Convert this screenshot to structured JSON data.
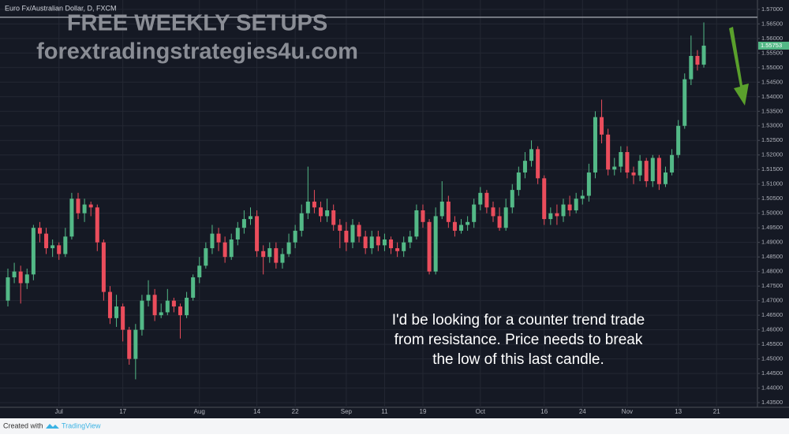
{
  "chart_data": {
    "type": "candlestick",
    "title": "Euro Fx/Australian Dollar, D, FXCM",
    "watermark": [
      "FREE WEEKLY SETUPS",
      "forextradingstrategies4u.com"
    ],
    "annotation": [
      "I'd be looking for a counter trend trade",
      "from resistance.  Price needs to break",
      "the low of this last candle."
    ],
    "up_color": "#53b987",
    "down_color": "#eb4d5c",
    "grid": true,
    "resistance_level": 1.5673,
    "ylim": [
      1.4334,
      1.5732
    ],
    "yticks": [
      {
        "value": 1.435,
        "label": "1.43500"
      },
      {
        "value": 1.44,
        "label": "1.44000"
      },
      {
        "value": 1.445,
        "label": "1.44500"
      },
      {
        "value": 1.45,
        "label": "1.45000"
      },
      {
        "value": 1.455,
        "label": "1.45500"
      },
      {
        "value": 1.46,
        "label": "1.46000"
      },
      {
        "value": 1.465,
        "label": "1.46500"
      },
      {
        "value": 1.47,
        "label": "1.47000"
      },
      {
        "value": 1.475,
        "label": "1.47500"
      },
      {
        "value": 1.48,
        "label": "1.48000"
      },
      {
        "value": 1.485,
        "label": "1.48500"
      },
      {
        "value": 1.49,
        "label": "1.49000"
      },
      {
        "value": 1.495,
        "label": "1.49500"
      },
      {
        "value": 1.5,
        "label": "1.50000"
      },
      {
        "value": 1.505,
        "label": "1.50500"
      },
      {
        "value": 1.51,
        "label": "1.51000"
      },
      {
        "value": 1.515,
        "label": "1.51500"
      },
      {
        "value": 1.52,
        "label": "1.52000"
      },
      {
        "value": 1.525,
        "label": "1.52500"
      },
      {
        "value": 1.53,
        "label": "1.53000"
      },
      {
        "value": 1.535,
        "label": "1.53500"
      },
      {
        "value": 1.54,
        "label": "1.54000"
      },
      {
        "value": 1.545,
        "label": "1.54500"
      },
      {
        "value": 1.55,
        "label": "1.55000"
      },
      {
        "value": 1.555,
        "label": "1.55500"
      },
      {
        "value": 1.56,
        "label": "1.56000"
      },
      {
        "value": 1.565,
        "label": "1.56500"
      },
      {
        "value": 1.57,
        "label": "1.57000"
      }
    ],
    "categories": [
      null,
      null,
      null,
      null,
      null,
      null,
      null,
      null,
      "Jul",
      null,
      null,
      null,
      null,
      null,
      null,
      null,
      null,
      null,
      "17",
      null,
      null,
      null,
      null,
      null,
      null,
      null,
      null,
      null,
      null,
      null,
      "Aug",
      null,
      null,
      null,
      null,
      null,
      null,
      null,
      null,
      "14",
      null,
      null,
      null,
      null,
      null,
      "22",
      null,
      null,
      null,
      null,
      null,
      null,
      null,
      "Sep",
      null,
      null,
      null,
      null,
      null,
      "11",
      null,
      null,
      null,
      null,
      null,
      "19",
      null,
      null,
      null,
      null,
      null,
      null,
      null,
      null,
      "Oct",
      null,
      null,
      null,
      null,
      null,
      null,
      null,
      null,
      null,
      "16",
      null,
      null,
      null,
      null,
      null,
      "24",
      null,
      null,
      null,
      null,
      null,
      null,
      "Nov",
      null,
      null,
      null,
      null,
      null,
      null,
      null,
      "13",
      null,
      null,
      null,
      null,
      null,
      "21",
      null,
      null,
      null,
      null,
      null,
      null
    ],
    "open": [
      1.47,
      1.478,
      1.48,
      1.476,
      1.479,
      1.495,
      1.493,
      1.488,
      1.489,
      1.486,
      1.492,
      1.505,
      1.5,
      1.503,
      1.502,
      1.49,
      1.473,
      1.464,
      1.468,
      1.46,
      1.45,
      1.46,
      1.47,
      1.472,
      1.465,
      1.466,
      1.47,
      1.468,
      1.465,
      1.471,
      1.478,
      1.482,
      1.488,
      1.493,
      1.49,
      1.485,
      1.491,
      1.495,
      1.498,
      1.499,
      1.487,
      1.485,
      1.488,
      1.483,
      1.486,
      1.49,
      1.494,
      1.5,
      1.504,
      1.502,
      1.499,
      1.501,
      1.496,
      1.494,
      1.49,
      1.496,
      1.492,
      1.488,
      1.492,
      1.489,
      1.491,
      1.488,
      1.487,
      1.49,
      1.492,
      1.501,
      1.497,
      1.48,
      1.499,
      1.504,
      1.497,
      1.494,
      1.496,
      1.497,
      1.503,
      1.507,
      1.502,
      1.499,
      1.495,
      1.502,
      1.508,
      1.514,
      1.518,
      1.522,
      1.512,
      1.498,
      1.5,
      1.499,
      1.503,
      1.501,
      1.505,
      1.506,
      1.514,
      1.533,
      1.527,
      1.515,
      1.516,
      1.521,
      1.514,
      1.513,
      1.518,
      1.511,
      1.519,
      1.51,
      1.514,
      1.52,
      1.53,
      1.546,
      1.554,
      1.551,
      null,
      null,
      null,
      null,
      null,
      null,
      null,
      null
    ],
    "high": [
      1.481,
      1.483,
      1.482,
      1.481,
      1.496,
      1.497,
      1.495,
      1.491,
      1.49,
      1.495,
      1.507,
      1.507,
      1.505,
      1.504,
      1.503,
      1.491,
      1.475,
      1.472,
      1.469,
      1.461,
      1.462,
      1.472,
      1.477,
      1.474,
      1.469,
      1.474,
      1.471,
      1.469,
      1.473,
      1.479,
      1.485,
      1.49,
      1.496,
      1.495,
      1.492,
      1.493,
      1.497,
      1.501,
      1.502,
      1.501,
      1.489,
      1.49,
      1.49,
      1.488,
      1.493,
      1.496,
      1.503,
      1.516,
      1.508,
      1.504,
      1.505,
      1.503,
      1.498,
      1.497,
      1.498,
      1.497,
      1.494,
      1.494,
      1.494,
      1.493,
      1.492,
      1.49,
      1.492,
      1.494,
      1.503,
      1.503,
      1.498,
      1.502,
      1.511,
      1.506,
      1.499,
      1.498,
      1.499,
      1.505,
      1.509,
      1.508,
      1.504,
      1.502,
      1.505,
      1.51,
      1.516,
      1.521,
      1.525,
      1.523,
      1.513,
      1.502,
      1.503,
      1.505,
      1.506,
      1.507,
      1.508,
      1.517,
      1.535,
      1.539,
      1.529,
      1.519,
      1.523,
      1.523,
      1.516,
      1.52,
      1.519,
      1.52,
      1.52,
      1.516,
      1.522,
      1.532,
      1.548,
      1.561,
      1.556,
      1.5655,
      null,
      null,
      null,
      null,
      null,
      null,
      null,
      null
    ],
    "low": [
      1.468,
      1.476,
      1.469,
      1.474,
      1.477,
      1.49,
      1.486,
      1.485,
      1.484,
      1.485,
      1.491,
      1.498,
      1.497,
      1.499,
      1.487,
      1.47,
      1.462,
      1.461,
      1.456,
      1.448,
      1.443,
      1.458,
      1.468,
      1.463,
      1.464,
      1.465,
      1.466,
      1.457,
      1.464,
      1.47,
      1.476,
      1.481,
      1.486,
      1.487,
      1.483,
      1.484,
      1.489,
      1.493,
      1.496,
      1.485,
      1.479,
      1.483,
      1.481,
      1.481,
      1.485,
      1.488,
      1.492,
      1.498,
      1.5,
      1.497,
      1.497,
      1.494,
      1.488,
      1.487,
      1.488,
      1.49,
      1.486,
      1.486,
      1.487,
      1.487,
      1.486,
      1.485,
      1.485,
      1.488,
      1.491,
      1.495,
      1.479,
      1.479,
      1.498,
      1.495,
      1.492,
      1.493,
      1.494,
      1.495,
      1.501,
      1.5,
      1.497,
      1.494,
      1.494,
      1.5,
      1.506,
      1.512,
      1.516,
      1.51,
      1.496,
      1.496,
      1.496,
      1.497,
      1.499,
      1.5,
      1.503,
      1.504,
      1.512,
      1.524,
      1.513,
      1.513,
      1.514,
      1.512,
      1.51,
      1.511,
      1.509,
      1.509,
      1.508,
      1.509,
      1.513,
      1.519,
      1.529,
      1.544,
      1.549,
      1.55,
      null,
      null,
      null,
      null,
      null,
      null,
      null,
      null
    ],
    "close": [
      1.478,
      1.48,
      1.476,
      1.479,
      1.495,
      1.493,
      1.488,
      1.489,
      1.486,
      1.492,
      1.505,
      1.5,
      1.503,
      1.502,
      1.49,
      1.473,
      1.464,
      1.468,
      1.46,
      1.45,
      1.46,
      1.47,
      1.472,
      1.465,
      1.466,
      1.47,
      1.468,
      1.465,
      1.471,
      1.478,
      1.482,
      1.488,
      1.493,
      1.49,
      1.485,
      1.491,
      1.495,
      1.498,
      1.499,
      1.487,
      1.485,
      1.488,
      1.483,
      1.486,
      1.49,
      1.494,
      1.5,
      1.504,
      1.502,
      1.499,
      1.501,
      1.496,
      1.494,
      1.49,
      1.496,
      1.492,
      1.488,
      1.492,
      1.489,
      1.491,
      1.488,
      1.487,
      1.49,
      1.492,
      1.501,
      1.497,
      1.48,
      1.499,
      1.504,
      1.497,
      1.494,
      1.496,
      1.497,
      1.503,
      1.507,
      1.502,
      1.499,
      1.495,
      1.502,
      1.508,
      1.514,
      1.518,
      1.522,
      1.512,
      1.498,
      1.5,
      1.499,
      1.503,
      1.501,
      1.505,
      1.506,
      1.514,
      1.533,
      1.527,
      1.515,
      1.516,
      1.521,
      1.514,
      1.513,
      1.518,
      1.511,
      1.519,
      1.51,
      1.514,
      1.52,
      1.53,
      1.546,
      1.554,
      1.551,
      1.55753,
      null,
      null,
      null,
      null,
      null,
      null,
      null,
      null
    ]
  },
  "footer": {
    "prefix": "Created with",
    "brand": "TradingView"
  }
}
